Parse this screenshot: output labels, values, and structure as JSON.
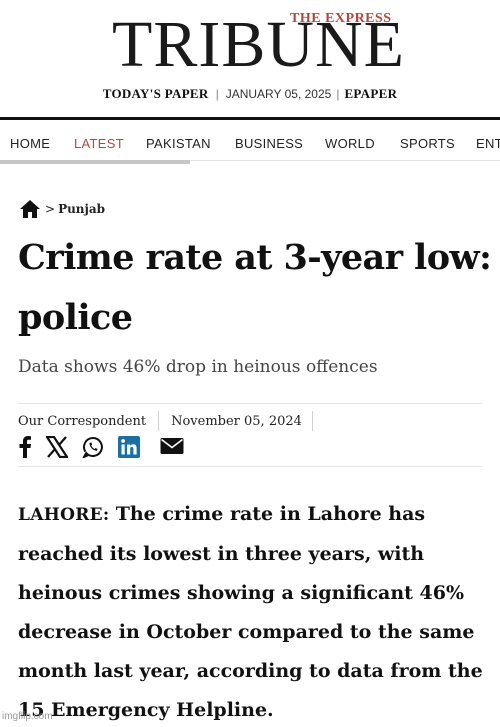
{
  "masthead": {
    "brand_top": "THE EXPRESS",
    "brand_main": "TRIBUNE",
    "todays_paper": "TODAY'S PAPER",
    "separator": "|",
    "date": "JANUARY 05, 2025",
    "epaper": "EPAPER"
  },
  "nav": {
    "items": [
      {
        "label": "HOME"
      },
      {
        "label": "LATEST"
      },
      {
        "label": "PAKISTAN"
      },
      {
        "label": "BUSINESS"
      },
      {
        "label": "WORLD"
      },
      {
        "label": "SPORTS"
      },
      {
        "label": "ENT"
      }
    ],
    "active_index": 1,
    "active_color": "#b5473a"
  },
  "breadcrumb": {
    "home_icon": "home-icon",
    "chevron": ">",
    "section": "Punjab"
  },
  "article": {
    "headline": "Crime rate at 3-year low: police",
    "subhead": "Data shows 46% drop in heinous offences",
    "author": "Our Correspondent",
    "published": "November 05, 2024",
    "share_icons": [
      "facebook-icon",
      "x-icon",
      "whatsapp-icon",
      "linkedin-icon",
      "email-icon"
    ],
    "dateline": "LAHORE:",
    "body": "The crime rate in Lahore has reached its lowest in three years, with heinous crimes showing a significant 46% decrease in October compared to the same month last year, according to data from the 15 Emergency Helpline."
  },
  "watermark": "imgflip.com"
}
